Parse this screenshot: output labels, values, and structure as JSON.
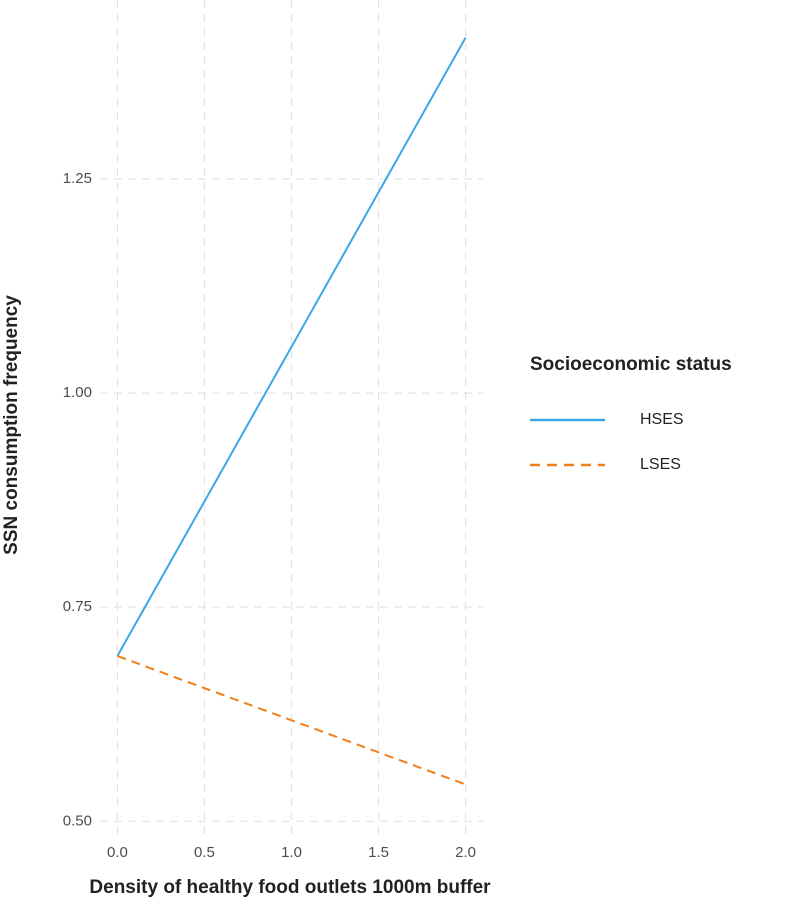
{
  "chart_data": {
    "type": "line",
    "x_label": "Density of healthy food outlets 1000m buffer",
    "y_label": "SSN consumption frequency",
    "x": [
      0,
      2
    ],
    "series": [
      {
        "name": "HSES",
        "color": "#3aa8e8",
        "dash": "solid",
        "values": [
          0.693,
          1.415
        ]
      },
      {
        "name": "LSES",
        "color": "#f07f1a",
        "dash": "dashed",
        "values": [
          0.693,
          0.543
        ]
      }
    ],
    "xlim": [
      -0.1,
      2.1
    ],
    "ylim": [
      0.484,
      1.459
    ],
    "xticks": [
      {
        "value": 0,
        "label": "0.0"
      },
      {
        "value": 0.5,
        "label": "0.5"
      },
      {
        "value": 1,
        "label": "1.0"
      },
      {
        "value": 1.5,
        "label": "1.5"
      },
      {
        "value": 2,
        "label": "2.0"
      }
    ],
    "yticks": [
      {
        "value": 0.5,
        "label": "0.50"
      },
      0.75,
      {
        "value": 1,
        "label": "1.00"
      },
      1.25
    ],
    "grid": true,
    "legend": {
      "title": "Socioeconomic status",
      "position": "right"
    }
  }
}
